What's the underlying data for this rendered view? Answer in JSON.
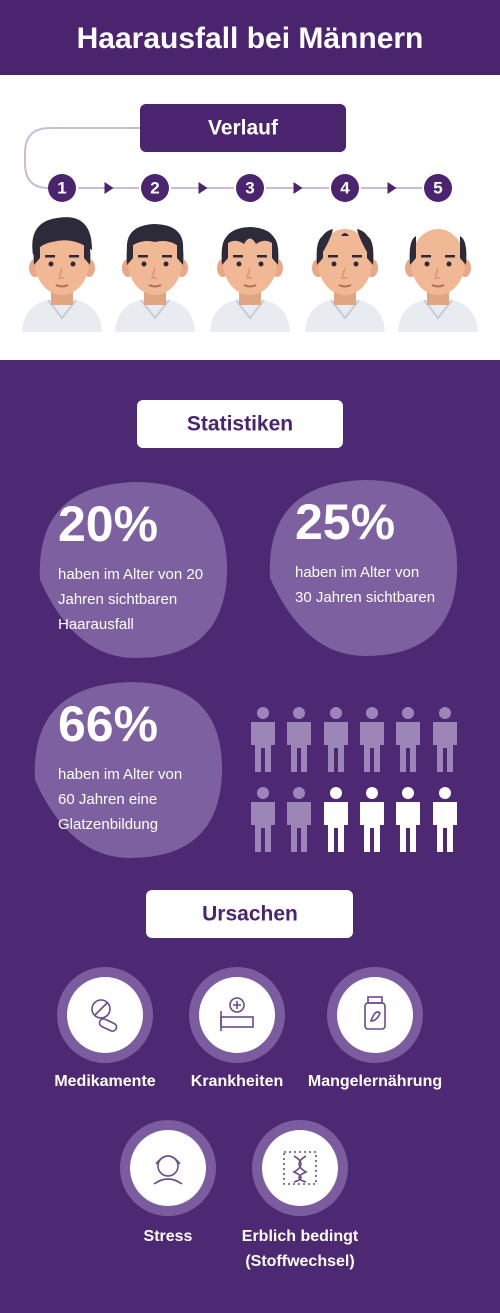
{
  "header": {
    "title": "Haarausfall bei Männern"
  },
  "progression": {
    "title": "Verlauf",
    "steps": [
      "1",
      "2",
      "3",
      "4",
      "5"
    ]
  },
  "statistics": {
    "title": "Statistiken",
    "items": [
      {
        "value": "20%",
        "lines": [
          "haben im Alter von 20",
          "Jahren sichtbaren",
          "Haarausfall"
        ]
      },
      {
        "value": "25%",
        "lines": [
          "haben im Alter von",
          "30 Jahren sichtbaren"
        ]
      },
      {
        "value": "66%",
        "lines": [
          "haben im Alter von",
          "60 Jahren eine",
          "Glatzenbildung"
        ]
      }
    ]
  },
  "causes": {
    "title": "Ursachen",
    "items": [
      {
        "lines": [
          "Medikamente"
        ]
      },
      {
        "lines": [
          "Krankheiten"
        ]
      },
      {
        "lines": [
          "Mangelernährung"
        ]
      },
      {
        "lines": [
          "Stress"
        ]
      },
      {
        "lines": [
          "Erblich bedingt",
          "(Stoffwechsel)"
        ]
      }
    ]
  }
}
